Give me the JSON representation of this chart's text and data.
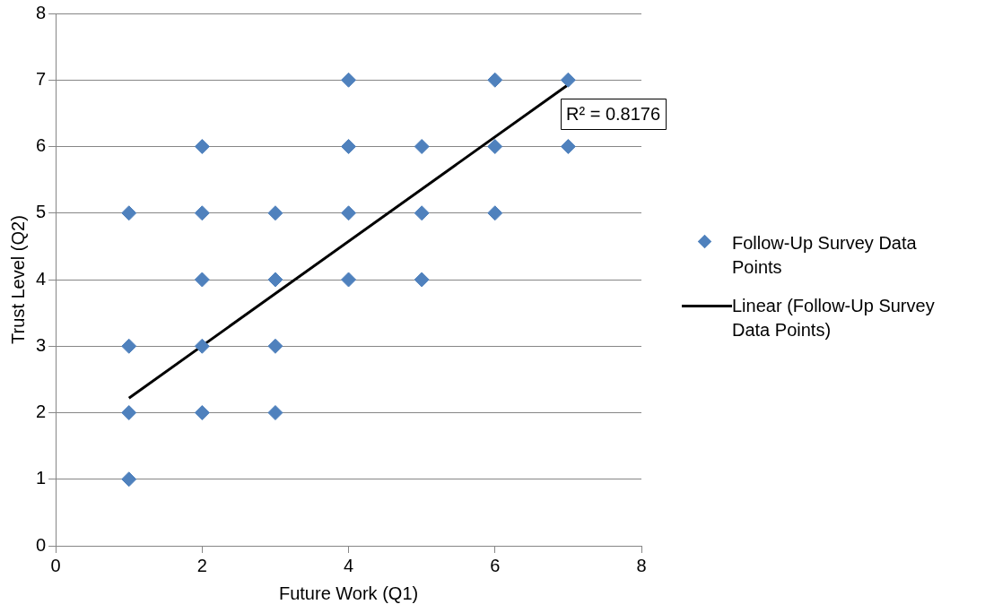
{
  "chart_data": {
    "type": "scatter",
    "xlabel": "Future Work (Q1)",
    "ylabel": "Trust Level (Q2)",
    "xlim": [
      0,
      8
    ],
    "xticks": [
      0,
      2,
      4,
      6,
      8
    ],
    "ylim": [
      0,
      8
    ],
    "yticks": [
      0,
      1,
      2,
      3,
      4,
      5,
      6,
      7,
      8
    ],
    "grid": "y",
    "legend": "right",
    "series": [
      {
        "name": "Follow-Up Survey Data Points",
        "marker": "diamond",
        "color": "#4f81bd",
        "x": [
          1,
          1,
          1,
          1,
          2,
          2,
          2,
          2,
          2,
          3,
          3,
          3,
          3,
          4,
          4,
          4,
          4,
          5,
          5,
          5,
          6,
          6,
          6,
          7,
          7
        ],
        "values": [
          5,
          3,
          2,
          1,
          6,
          5,
          4,
          3,
          2,
          5,
          4,
          3,
          2,
          7,
          6,
          5,
          4,
          6,
          5,
          4,
          7,
          6,
          5,
          7,
          6
        ]
      },
      {
        "name": "Linear (Follow-Up Survey Data Points)",
        "type": "line",
        "marker": "none",
        "color": "#000000",
        "x": [
          1,
          7
        ],
        "values": [
          2.22,
          6.93
        ]
      }
    ],
    "annotations": [
      "R² = 0.8176"
    ]
  }
}
